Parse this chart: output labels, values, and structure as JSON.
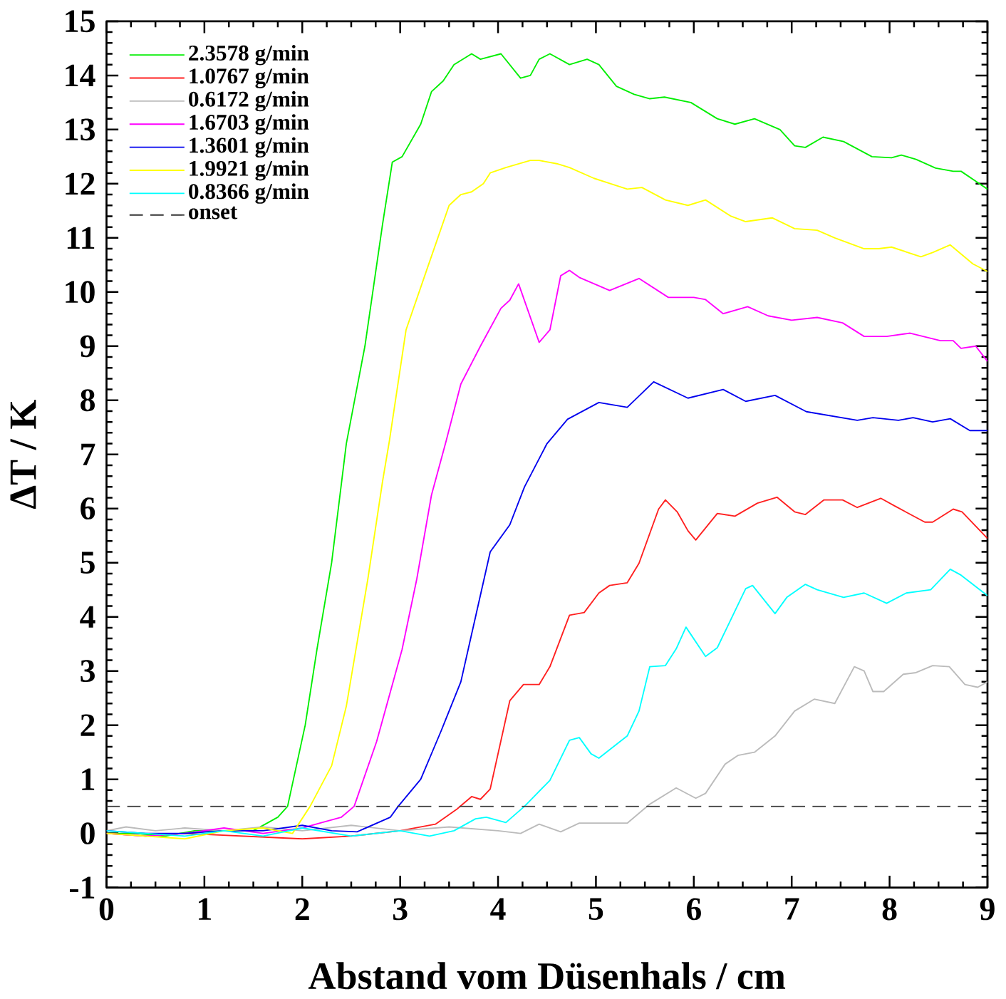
{
  "chart_data": {
    "type": "line",
    "xlabel": "Abstand vom Düsenhals / cm",
    "ylabel": "ΔT / K",
    "xlim": [
      0,
      9
    ],
    "ylim": [
      -1,
      15
    ],
    "xticks": [
      0,
      1,
      2,
      3,
      4,
      5,
      6,
      7,
      8,
      9
    ],
    "yticks": [
      -1,
      0,
      1,
      2,
      3,
      4,
      5,
      6,
      7,
      8,
      9,
      10,
      11,
      12,
      13,
      14,
      15
    ],
    "grid": false,
    "legend": "top left",
    "marker": "none",
    "line_style": "solid",
    "series": [
      {
        "name": "2.3578 g/min",
        "color": "#00ee00",
        "x": [
          0,
          0.3,
          0.6,
          0.9,
          1.2,
          1.5,
          1.75,
          1.85,
          2.03,
          2.15,
          2.3,
          2.45,
          2.64,
          2.82,
          2.92,
          3.02,
          3.21,
          3.32,
          3.44,
          3.55,
          3.73,
          3.82,
          4.03,
          4.23,
          4.33,
          4.42,
          4.53,
          4.73,
          4.91,
          5.03,
          5.21,
          5.39,
          5.55,
          5.7,
          5.97,
          6.24,
          6.42,
          6.62,
          6.88,
          7.03,
          7.14,
          7.32,
          7.53,
          7.82,
          8.02,
          8.12,
          8.27,
          8.47,
          8.65,
          8.73,
          9.0
        ],
        "values": [
          0,
          0,
          -0.05,
          0.05,
          null,
          0.05,
          0.3,
          0.5,
          2.0,
          3.4,
          5.0,
          7.2,
          9.0,
          11.25,
          12.4,
          12.5,
          13.1,
          13.7,
          13.9,
          14.2,
          14.4,
          14.3,
          14.4,
          13.95,
          14.0,
          14.3,
          14.4,
          14.2,
          14.3,
          14.2,
          13.8,
          13.65,
          13.57,
          13.6,
          13.5,
          13.2,
          13.1,
          13.2,
          13.0,
          12.7,
          12.67,
          12.86,
          12.78,
          12.5,
          12.48,
          12.53,
          12.45,
          12.29,
          12.23,
          12.23,
          11.9
        ]
      },
      {
        "name": "1.0767 g/min",
        "color": "#ff2020",
        "x": [
          0,
          0.4,
          0.8,
          1.2,
          1.6,
          2.0,
          2.5,
          3.0,
          3.36,
          3.58,
          3.73,
          3.82,
          3.92,
          4.12,
          4.26,
          4.42,
          4.53,
          4.73,
          4.88,
          5.03,
          5.14,
          5.32,
          5.44,
          5.64,
          5.71,
          5.83,
          5.94,
          6.02,
          6.24,
          6.42,
          6.65,
          6.85,
          7.03,
          7.14,
          7.33,
          7.52,
          7.67,
          7.91,
          8.05,
          8.36,
          8.44,
          8.65,
          8.74,
          9.0
        ],
        "values": [
          0,
          -0.05,
          0,
          null,
          null,
          -0.1,
          -0.05,
          0.05,
          0.17,
          0.45,
          0.68,
          0.63,
          0.82,
          2.45,
          2.75,
          2.75,
          3.08,
          4.03,
          4.08,
          4.44,
          4.58,
          4.63,
          4.99,
          5.99,
          6.16,
          5.94,
          5.59,
          5.42,
          5.91,
          5.86,
          6.1,
          6.21,
          5.94,
          5.89,
          6.16,
          6.16,
          6.02,
          6.19,
          6.05,
          5.75,
          5.75,
          5.99,
          5.94,
          5.45
        ]
      },
      {
        "name": "0.6172 g/min",
        "color": "#bbbbbb",
        "x": [
          0,
          0.2,
          0.5,
          0.8,
          1.2,
          1.6,
          2.0,
          2.5,
          3.0,
          3.5,
          4.0,
          4.23,
          4.42,
          4.64,
          4.83,
          5.14,
          5.32,
          5.55,
          5.82,
          6.02,
          6.12,
          6.32,
          6.45,
          6.62,
          6.83,
          7.03,
          7.23,
          7.44,
          7.64,
          7.74,
          7.83,
          7.94,
          8.14,
          8.27,
          8.44,
          8.61,
          8.77,
          8.9,
          9.0
        ],
        "values": [
          0.05,
          0.12,
          0.05,
          0.1,
          0.05,
          0.12,
          0.05,
          0.15,
          0.05,
          0.12,
          0.05,
          0.0,
          0.17,
          0.03,
          0.19,
          0.19,
          0.19,
          0.54,
          0.84,
          0.65,
          0.74,
          1.28,
          1.44,
          1.5,
          1.8,
          2.26,
          2.48,
          2.4,
          3.08,
          3.0,
          2.62,
          2.62,
          2.94,
          2.97,
          3.1,
          3.08,
          2.75,
          2.7,
          2.8
        ]
      },
      {
        "name": "1.6703 g/min",
        "color": "#ff00ff",
        "x": [
          0,
          0.4,
          0.8,
          1.2,
          1.6,
          2.0,
          2.2,
          2.4,
          2.53,
          2.76,
          3.02,
          3.17,
          3.32,
          3.47,
          3.62,
          3.82,
          4.03,
          4.12,
          4.21,
          4.42,
          4.53,
          4.64,
          4.73,
          4.83,
          5.14,
          5.44,
          5.74,
          6.0,
          6.12,
          6.3,
          6.55,
          6.76,
          7.0,
          7.26,
          7.52,
          7.74,
          7.97,
          8.21,
          8.52,
          8.65,
          8.73,
          8.88,
          9.0
        ],
        "values": [
          0,
          -0.05,
          0,
          0.1,
          0,
          0.1,
          0.2,
          0.3,
          0.5,
          1.7,
          3.4,
          4.7,
          6.25,
          7.25,
          8.3,
          9.0,
          9.7,
          9.85,
          10.15,
          9.07,
          9.3,
          10.3,
          10.4,
          10.27,
          10.03,
          10.25,
          9.9,
          9.9,
          9.86,
          9.6,
          9.73,
          9.56,
          9.48,
          9.53,
          9.43,
          9.18,
          9.18,
          9.24,
          9.1,
          9.1,
          8.96,
          9.0,
          8.72
        ]
      },
      {
        "name": "1.3601 g/min",
        "color": "#0000ee",
        "x": [
          0,
          0.4,
          0.8,
          1.2,
          1.6,
          2.0,
          2.3,
          2.56,
          2.9,
          2.98,
          3.21,
          3.42,
          3.62,
          3.82,
          3.92,
          4.12,
          4.27,
          4.5,
          4.71,
          5.03,
          5.32,
          5.59,
          5.94,
          6.3,
          6.53,
          6.83,
          7.15,
          7.67,
          7.83,
          8.09,
          8.24,
          8.44,
          8.62,
          8.82,
          9.0
        ],
        "values": [
          0.05,
          0,
          0,
          0.05,
          0.05,
          0.15,
          0.05,
          0.03,
          0.3,
          0.5,
          1.0,
          1.9,
          2.8,
          4.4,
          5.2,
          5.7,
          6.4,
          7.2,
          7.65,
          7.96,
          7.87,
          8.34,
          8.04,
          8.2,
          7.98,
          8.09,
          7.79,
          7.63,
          7.68,
          7.63,
          7.68,
          7.6,
          7.66,
          7.44,
          7.44
        ]
      },
      {
        "name": "1.9921 g/min",
        "color": "#ffff00",
        "x": [
          0,
          0.4,
          0.8,
          1.2,
          1.6,
          1.9,
          2.08,
          2.3,
          2.45,
          2.67,
          2.82,
          2.89,
          3.06,
          3.27,
          3.5,
          3.62,
          3.73,
          3.85,
          3.92,
          4.08,
          4.33,
          4.42,
          4.6,
          4.73,
          4.98,
          5.32,
          5.47,
          5.71,
          5.94,
          6.12,
          6.38,
          6.53,
          6.8,
          7.03,
          7.26,
          7.44,
          7.74,
          7.89,
          8.02,
          8.32,
          8.44,
          8.62,
          8.85,
          9.0
        ],
        "values": [
          0,
          -0.05,
          -0.1,
          0.05,
          0.1,
          0.0,
          0.5,
          1.25,
          2.35,
          4.7,
          6.5,
          7.25,
          9.3,
          10.4,
          11.6,
          11.8,
          11.85,
          12.0,
          12.2,
          12.3,
          12.43,
          12.43,
          12.37,
          12.3,
          12.1,
          11.9,
          11.93,
          11.7,
          11.6,
          11.7,
          11.4,
          11.3,
          11.37,
          11.17,
          11.14,
          11.0,
          10.8,
          10.8,
          10.83,
          10.65,
          10.73,
          10.87,
          10.52,
          10.38
        ]
      },
      {
        "name": "0.8366 g/min",
        "color": "#00ffff",
        "x": [
          0,
          0.4,
          0.8,
          1.2,
          1.6,
          2.0,
          2.5,
          3.0,
          3.3,
          3.55,
          3.77,
          3.88,
          4.08,
          4.27,
          4.53,
          4.73,
          4.83,
          4.95,
          5.03,
          5.32,
          5.44,
          5.55,
          5.71,
          5.82,
          5.92,
          6.12,
          6.24,
          6.53,
          6.6,
          6.83,
          6.95,
          7.14,
          7.26,
          7.53,
          7.74,
          7.97,
          8.17,
          8.42,
          8.62,
          8.73,
          9.0
        ],
        "values": [
          0.05,
          0,
          -0.05,
          0.05,
          -0.05,
          0.1,
          -0.05,
          0.05,
          -0.05,
          0.05,
          0.27,
          0.3,
          0.2,
          0.5,
          0.98,
          1.72,
          1.77,
          1.47,
          1.39,
          1.8,
          2.26,
          3.08,
          3.1,
          3.41,
          3.81,
          3.27,
          3.43,
          4.52,
          4.58,
          4.06,
          4.36,
          4.6,
          4.5,
          4.36,
          4.44,
          4.25,
          4.44,
          4.5,
          4.88,
          4.77,
          4.39
        ]
      }
    ],
    "ref_lines": [
      {
        "axis": "y",
        "value": 0.5,
        "label": "onset",
        "color": "#333333",
        "line_style": "dashed"
      }
    ]
  }
}
